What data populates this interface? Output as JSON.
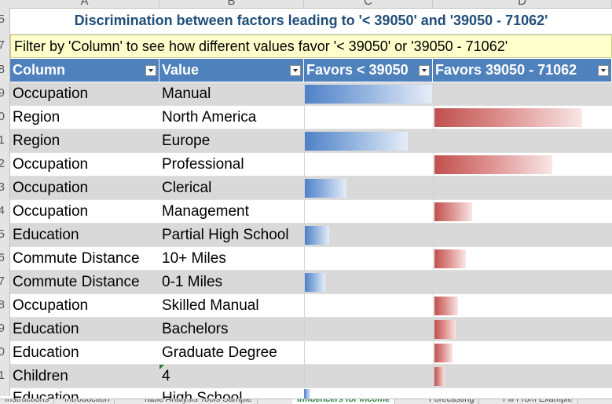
{
  "columns": [
    "A",
    "B",
    "C",
    "D"
  ],
  "row_numbers": [
    "5",
    "7",
    "8",
    "9",
    "0",
    "1",
    "2",
    "3",
    "4",
    "5",
    "6",
    "7",
    "8",
    "9",
    "0",
    "1"
  ],
  "title": "Discrimination between factors leading to '< 39050' and '39050 - 71062'",
  "filter_note": "Filter by 'Column' to see how different values favor '< 39050' or '39050 - 71062'",
  "headers": {
    "column": "Column",
    "value": "Value",
    "favors_a": "Favors < 39050",
    "favors_b": "Favors 39050 - 71062"
  },
  "colors": {
    "header_bg": "#4f81bd",
    "title_text": "#1f4e79",
    "filter_bg": "#ffffcc",
    "bar_blue": "#4f81c7",
    "bar_red": "#c0504d"
  },
  "rows": [
    {
      "column": "Occupation",
      "value": "Manual",
      "favors_a": 1.0,
      "favors_b": 0
    },
    {
      "column": "Region",
      "value": "North America",
      "favors_a": 0,
      "favors_b": 0.99
    },
    {
      "column": "Region",
      "value": "Europe",
      "favors_a": 0.81,
      "favors_b": 0
    },
    {
      "column": "Occupation",
      "value": "Professional",
      "favors_a": 0,
      "favors_b": 0.79
    },
    {
      "column": "Occupation",
      "value": "Clerical",
      "favors_a": 0.33,
      "favors_b": 0
    },
    {
      "column": "Occupation",
      "value": "Management",
      "favors_a": 0,
      "favors_b": 0.25
    },
    {
      "column": "Education",
      "value": "Partial High School",
      "favors_a": 0.19,
      "favors_b": 0
    },
    {
      "column": "Commute Distance",
      "value": "10+ Miles",
      "favors_a": 0,
      "favors_b": 0.21
    },
    {
      "column": "Commute Distance",
      "value": "0-1 Miles",
      "favors_a": 0.16,
      "favors_b": 0
    },
    {
      "column": "Occupation",
      "value": "Skilled Manual",
      "favors_a": 0,
      "favors_b": 0.16
    },
    {
      "column": "Education",
      "value": "Bachelors",
      "favors_a": 0,
      "favors_b": 0.14
    },
    {
      "column": "Education",
      "value": "Graduate Degree",
      "favors_a": 0,
      "favors_b": 0.12
    },
    {
      "column": "Children",
      "value": "4",
      "favors_a": 0,
      "favors_b": 0.07
    }
  ],
  "partial_row": {
    "column": "Education",
    "value": "High School",
    "favors_a": 0.05,
    "favors_b": 0
  },
  "tabs": [
    {
      "label": "Instructions",
      "active": false
    },
    {
      "label": "Introduction",
      "active": false
    },
    {
      "label": "Table Analysis Tools Sample",
      "active": false
    },
    {
      "label": "Influencers for Income",
      "active": true
    },
    {
      "label": "Forecasting",
      "active": false
    },
    {
      "label": "Fill From Example",
      "active": false
    }
  ]
}
